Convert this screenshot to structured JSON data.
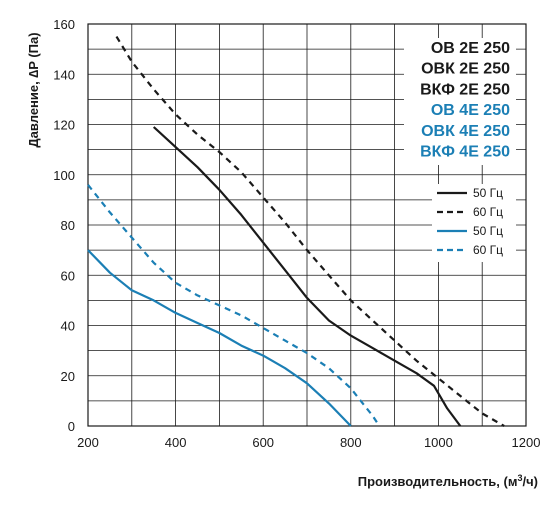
{
  "colors": {
    "black_series": "#1a1a1a",
    "blue_series": "#1b7fb5",
    "grid": "#1a1a1a"
  },
  "chart_data": {
    "type": "line",
    "xlabel_main": "Производительность, (м",
    "xlabel_sup": "3",
    "xlabel_end": "/ч)",
    "ylabel": "Давление, ∆P (Па)",
    "xlim": [
      200,
      1200
    ],
    "ylim": [
      0,
      160
    ],
    "x_ticks": [
      "200",
      "400",
      "600",
      "800",
      "1000",
      "1200"
    ],
    "y_ticks": [
      "0",
      "20",
      "40",
      "60",
      "80",
      "100",
      "120",
      "140",
      "160"
    ],
    "x_grid_step": 100,
    "y_grid_step": 10,
    "grid": true,
    "model_labels": [
      {
        "text": "ОВ 2Е 250",
        "color": "#1a1a1a"
      },
      {
        "text": "ОВК 2Е 250",
        "color": "#1a1a1a"
      },
      {
        "text": "ВКФ 2Е 250",
        "color": "#1a1a1a"
      },
      {
        "text": "ОВ 4Е 250",
        "color": "#1b7fb5"
      },
      {
        "text": "ОВК 4Е 250",
        "color": "#1b7fb5"
      },
      {
        "text": "ВКФ 4Е 250",
        "color": "#1b7fb5"
      }
    ],
    "legend_position": "right",
    "series": [
      {
        "name": "50 Гц",
        "color": "#1a1a1a",
        "dashed": false,
        "points": [
          [
            350,
            119
          ],
          [
            400,
            111
          ],
          [
            450,
            103
          ],
          [
            500,
            94
          ],
          [
            550,
            84
          ],
          [
            600,
            73
          ],
          [
            650,
            62
          ],
          [
            700,
            51
          ],
          [
            750,
            42
          ],
          [
            800,
            36
          ],
          [
            850,
            31
          ],
          [
            900,
            26
          ],
          [
            950,
            21
          ],
          [
            990,
            16
          ],
          [
            1020,
            7
          ],
          [
            1050,
            0
          ]
        ]
      },
      {
        "name": "60 Гц",
        "color": "#1a1a1a",
        "dashed": true,
        "points": [
          [
            265,
            155
          ],
          [
            300,
            145
          ],
          [
            350,
            134
          ],
          [
            400,
            124
          ],
          [
            450,
            116
          ],
          [
            500,
            109
          ],
          [
            550,
            101
          ],
          [
            600,
            91
          ],
          [
            650,
            81
          ],
          [
            700,
            70
          ],
          [
            750,
            60
          ],
          [
            800,
            50
          ],
          [
            850,
            42
          ],
          [
            900,
            34
          ],
          [
            950,
            26
          ],
          [
            1000,
            19
          ],
          [
            1050,
            12
          ],
          [
            1100,
            5
          ],
          [
            1150,
            0
          ]
        ]
      },
      {
        "name": "50 Гц",
        "color": "#1b7fb5",
        "dashed": false,
        "points": [
          [
            200,
            70
          ],
          [
            250,
            61
          ],
          [
            300,
            54
          ],
          [
            350,
            50
          ],
          [
            400,
            45
          ],
          [
            450,
            41
          ],
          [
            500,
            37
          ],
          [
            550,
            32
          ],
          [
            600,
            28
          ],
          [
            650,
            23
          ],
          [
            700,
            17
          ],
          [
            750,
            9
          ],
          [
            800,
            0
          ]
        ]
      },
      {
        "name": "60 Гц",
        "color": "#1b7fb5",
        "dashed": true,
        "points": [
          [
            200,
            96
          ],
          [
            250,
            85
          ],
          [
            300,
            75
          ],
          [
            350,
            65
          ],
          [
            400,
            57
          ],
          [
            450,
            52
          ],
          [
            500,
            48
          ],
          [
            550,
            44
          ],
          [
            600,
            39
          ],
          [
            650,
            34
          ],
          [
            700,
            29
          ],
          [
            750,
            23
          ],
          [
            800,
            15
          ],
          [
            850,
            4
          ],
          [
            865,
            0
          ]
        ]
      }
    ]
  }
}
